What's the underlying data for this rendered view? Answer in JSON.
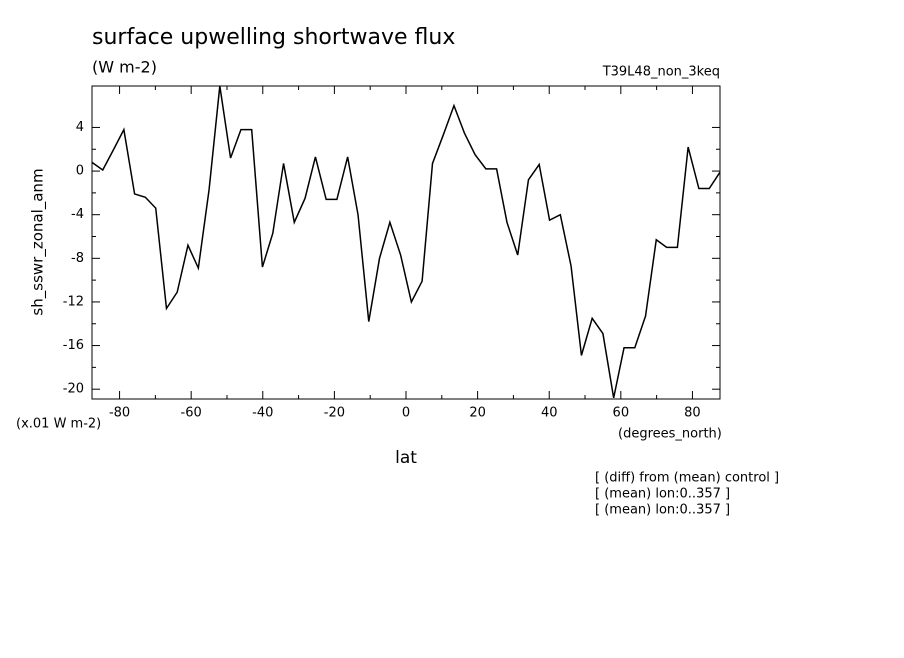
{
  "chart_data": {
    "type": "line",
    "title": "surface upwelling shortwave flux",
    "subtitle": "(W m-2)",
    "dataset": "T39L48_non_3keq",
    "y_label": "sh_sswr_zonal_anm",
    "y_units": "(x.01 W m-2)",
    "x_units": "(degrees_north)",
    "x_label": "lat",
    "notes": [
      "[ (diff) from (mean) control ]",
      "[ (mean) lon:0..357 ]",
      "[ (mean) lon:0..357 ]"
    ],
    "x": [
      -87.7,
      -84.7,
      -81.8,
      -78.8,
      -75.8,
      -72.8,
      -69.9,
      -66.9,
      -63.9,
      -60.9,
      -58.0,
      -55.0,
      -52.0,
      -49.0,
      -46.1,
      -43.1,
      -40.1,
      -37.2,
      -34.2,
      -31.2,
      -28.2,
      -25.3,
      -22.3,
      -19.3,
      -16.3,
      -13.4,
      -10.4,
      -7.4,
      -4.5,
      -1.5,
      1.5,
      4.5,
      7.4,
      10.4,
      13.4,
      16.3,
      19.3,
      22.3,
      25.3,
      28.2,
      31.2,
      34.2,
      37.2,
      40.1,
      43.1,
      46.1,
      49.0,
      52.0,
      55.0,
      58.0,
      60.9,
      63.9,
      66.9,
      69.9,
      72.8,
      75.8,
      78.8,
      81.8,
      84.7,
      87.7
    ],
    "series": [
      {
        "color": "#000000",
        "values": [
          0.8,
          0.1,
          1.9,
          3.8,
          -2.1,
          -2.4,
          -3.4,
          -12.6,
          -11.1,
          -6.8,
          -8.9,
          -1.7,
          7.8,
          1.2,
          3.8,
          3.8,
          -8.8,
          -5.7,
          0.7,
          -4.7,
          -2.5,
          1.3,
          -2.6,
          -2.6,
          1.3,
          -4.0,
          -13.8,
          -8.0,
          -4.7,
          -7.7,
          -12.0,
          -10.1,
          0.7,
          3.3,
          6.0,
          3.5,
          1.5,
          0.2,
          0.2,
          -4.7,
          -7.7,
          -0.8,
          0.6,
          -4.5,
          -4.0,
          -8.7,
          -16.9,
          -13.5,
          -14.9,
          -20.8,
          -16.2,
          -16.2,
          -13.3,
          -6.3,
          -7.0,
          -7.0,
          2.2,
          -1.6,
          -1.6,
          -0.1
        ]
      }
    ],
    "xlim": [
      -87.7,
      87.7
    ],
    "ylim": [
      -20.9,
      7.8
    ],
    "xticks": [
      -80,
      -60,
      -40,
      -20,
      0,
      20,
      40,
      60,
      80
    ],
    "yticks": [
      -20,
      -16,
      -12,
      -8,
      -4,
      0,
      4
    ]
  }
}
